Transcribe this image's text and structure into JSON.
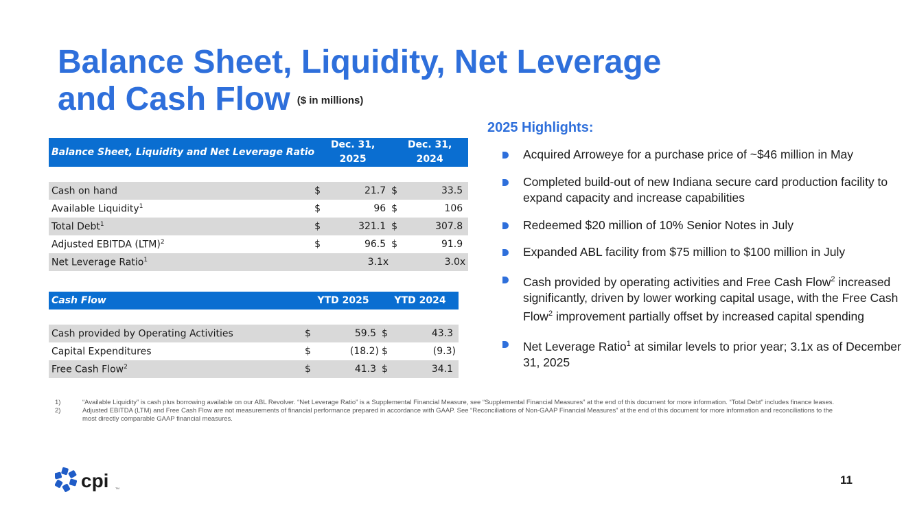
{
  "title": {
    "line1": "Balance Sheet, Liquidity, Net Leverage",
    "line2": "and Cash Flow",
    "unit": "($ in millions)"
  },
  "balance_table": {
    "header": {
      "label": "Balance Sheet, Liquidity and Net Leverage Ratio",
      "col1": "Dec. 31, 2025",
      "col2": "Dec. 31, 2024"
    },
    "rows": [
      {
        "label": "Cash on hand",
        "sup": "",
        "d1": "$",
        "v1": "21.7",
        "d2": "$",
        "v2": "33.5"
      },
      {
        "label": "Available Liquidity",
        "sup": "1",
        "d1": "$",
        "v1": "96",
        "d2": "$",
        "v2": "106"
      },
      {
        "label": "Total Debt",
        "sup": "1",
        "d1": "$",
        "v1": "321.1",
        "d2": "$",
        "v2": "307.8"
      },
      {
        "label": "Adjusted EBITDA (LTM)",
        "sup": "2",
        "d1": "$",
        "v1": "96.5",
        "d2": "$",
        "v2": "91.9"
      },
      {
        "label": "Net Leverage Ratio",
        "sup": "1",
        "d1": "",
        "v1": "3.1x",
        "d2": "",
        "v2": "3.0x"
      }
    ]
  },
  "cash_table": {
    "header": {
      "label": "Cash Flow",
      "col1": "YTD 2025",
      "col2": "YTD 2024"
    },
    "rows": [
      {
        "label": "Cash provided by Operating Activities",
        "sup": "",
        "d1": "$",
        "v1": "59.5",
        "d2": "$",
        "v2": "43.3"
      },
      {
        "label": "Capital Expenditures",
        "sup": "",
        "d1": "$",
        "v1": "(18.2)",
        "d2": "$",
        "v2": "(9.3)"
      },
      {
        "label": "Free Cash Flow",
        "sup": "2",
        "d1": "$",
        "v1": "41.3",
        "d2": "$",
        "v2": "34.1"
      }
    ]
  },
  "highlights": {
    "title": "2025 Highlights:",
    "items": [
      {
        "a": "Acquired Arroweye for a purchase price of ~$46 million in May",
        "s1": "",
        "b": "",
        "s2": "",
        "c": ""
      },
      {
        "a": "Completed build-out of new Indiana secure card production facility to expand capacity and increase capabilities",
        "s1": "",
        "b": "",
        "s2": "",
        "c": ""
      },
      {
        "a": "Redeemed $20 million of 10% Senior Notes in July",
        "s1": "",
        "b": "",
        "s2": "",
        "c": ""
      },
      {
        "a": "Expanded ABL facility from $75 million to $100 million in July",
        "s1": "",
        "b": "",
        "s2": "",
        "c": ""
      },
      {
        "a": "Cash provided by operating activities and Free Cash Flow",
        "s1": "2",
        "b": " increased significantly, driven by lower working capital usage, with the Free Cash Flow",
        "s2": "2",
        "c": " improvement partially offset by increased capital spending"
      },
      {
        "a": "Net Leverage Ratio",
        "s1": "1",
        "b": " at similar levels to prior year; 3.1x as of December 31, 2025",
        "s2": "",
        "c": ""
      }
    ]
  },
  "footnotes": [
    {
      "num": "1)",
      "text": "“Available Liquidity” is cash plus borrowing available on our ABL Revolver. “Net Leverage Ratio” is a Supplemental Financial Measure, see “Supplemental Financial Measures” at the end of this document for more information. “Total Debt” includes finance leases."
    },
    {
      "num": "2)",
      "text": "Adjusted EBITDA (LTM) and Free Cash Flow are not measurements of financial performance prepared in accordance with GAAP. See “Reconciliations of Non-GAAP Financial Measures” at the end of this document for more information and reconciliations to the most directly comparable GAAP financial measures."
    }
  ],
  "logo": {
    "text": "cpi",
    "tm": "TM"
  },
  "page_number": "11",
  "colors": {
    "title_blue": "#2e6fdb",
    "header_blue": "#0a6ed1",
    "row_gray": "#d9d9d9"
  }
}
